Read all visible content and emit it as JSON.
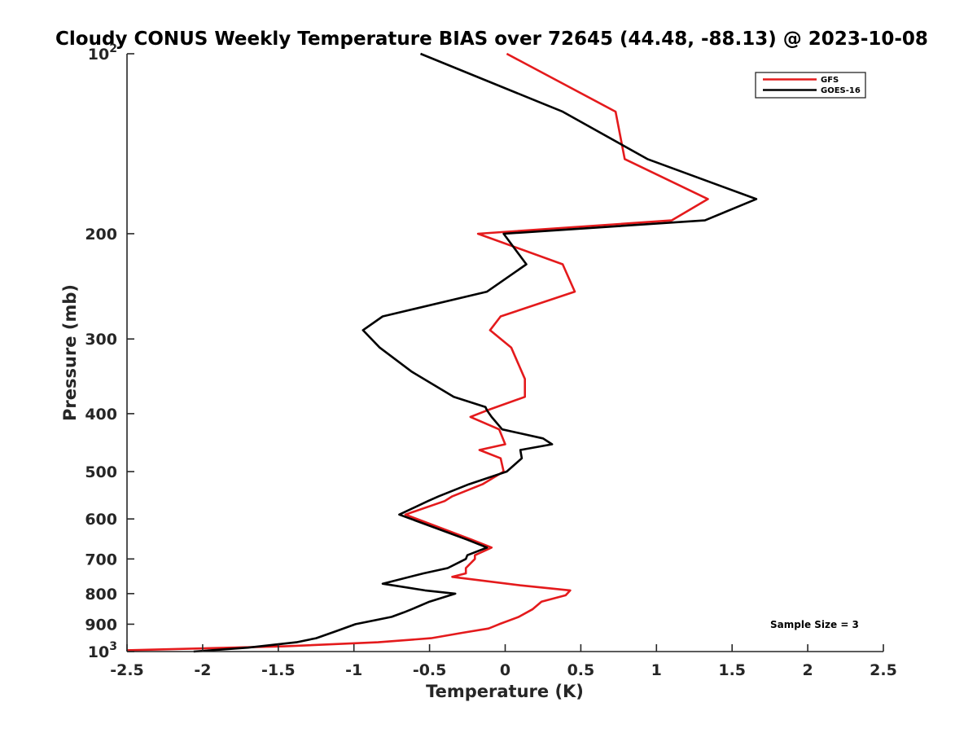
{
  "chart_data": {
    "type": "line",
    "title": "Cloudy CONUS Weekly Temperature BIAS over 72645 (44.48, -88.13) @ 2023-10-08",
    "xlabel": "Temperature (K)",
    "ylabel": "Pressure (mb)",
    "xlim": [
      -2.5,
      2.5
    ],
    "ylim": [
      100,
      1000
    ],
    "y_scale": "log",
    "y_reversed": true,
    "x_ticks": [
      -2.5,
      -2,
      -1.5,
      -1,
      -0.5,
      0,
      0.5,
      1,
      1.5,
      2,
      2.5
    ],
    "x_tick_labels": [
      "-2.5",
      "-2",
      "-1.5",
      "-1",
      "-0.5",
      "0",
      "0.5",
      "1",
      "1.5",
      "2",
      "2.5"
    ],
    "y_ticks": [
      100,
      200,
      300,
      400,
      500,
      600,
      700,
      800,
      900,
      1000
    ],
    "y_tick_labels": {
      "100": {
        "base": "10",
        "exp": "2"
      },
      "200": {
        "base": "200"
      },
      "300": {
        "base": "300"
      },
      "400": {
        "base": "400"
      },
      "500": {
        "base": "500"
      },
      "600": {
        "base": "600"
      },
      "700": {
        "base": "700"
      },
      "800": {
        "base": "800"
      },
      "900": {
        "base": "900"
      },
      "1000": {
        "base": "10",
        "exp": "3"
      }
    },
    "grid": false,
    "legend_position": "top-right",
    "annotation": "Sample Size = 3",
    "series": [
      {
        "name": "GFS",
        "color": "#e41a1c",
        "points": [
          [
            0.01,
            100
          ],
          [
            0.73,
            125
          ],
          [
            0.79,
            150
          ],
          [
            1.34,
            175
          ],
          [
            1.1,
            190
          ],
          [
            -0.18,
            200
          ],
          [
            0.38,
            225
          ],
          [
            0.46,
            250
          ],
          [
            -0.03,
            275
          ],
          [
            -0.1,
            290
          ],
          [
            0.04,
            310
          ],
          [
            0.13,
            350
          ],
          [
            0.13,
            375
          ],
          [
            -0.12,
            395
          ],
          [
            -0.23,
            405
          ],
          [
            -0.04,
            425
          ],
          [
            0.0,
            450
          ],
          [
            -0.17,
            460
          ],
          [
            -0.03,
            475
          ],
          [
            -0.01,
            500
          ],
          [
            -0.15,
            525
          ],
          [
            -0.35,
            550
          ],
          [
            -0.4,
            560
          ],
          [
            -0.66,
            590
          ],
          [
            -0.22,
            650
          ],
          [
            -0.09,
            670
          ],
          [
            -0.2,
            690
          ],
          [
            -0.2,
            700
          ],
          [
            -0.26,
            725
          ],
          [
            -0.26,
            740
          ],
          [
            -0.35,
            750
          ],
          [
            0.1,
            775
          ],
          [
            0.43,
            790
          ],
          [
            0.4,
            805
          ],
          [
            0.24,
            825
          ],
          [
            0.18,
            850
          ],
          [
            0.09,
            875
          ],
          [
            -0.04,
            900
          ],
          [
            -0.11,
            915
          ],
          [
            -0.28,
            930
          ],
          [
            -0.49,
            950
          ],
          [
            -0.84,
            965
          ],
          [
            -1.46,
            980
          ],
          [
            -2.5,
            995
          ]
        ]
      },
      {
        "name": "GOES-16",
        "color": "#000000",
        "points": [
          [
            -0.56,
            100
          ],
          [
            0.38,
            125
          ],
          [
            0.94,
            150
          ],
          [
            1.66,
            175
          ],
          [
            1.32,
            190
          ],
          [
            -0.01,
            200
          ],
          [
            0.14,
            225
          ],
          [
            -0.12,
            250
          ],
          [
            -0.81,
            275
          ],
          [
            -0.94,
            290
          ],
          [
            -0.83,
            310
          ],
          [
            -0.62,
            340
          ],
          [
            -0.34,
            375
          ],
          [
            -0.13,
            390
          ],
          [
            -0.12,
            395
          ],
          [
            -0.09,
            405
          ],
          [
            -0.02,
            425
          ],
          [
            0.25,
            440
          ],
          [
            0.31,
            450
          ],
          [
            0.1,
            460
          ],
          [
            0.11,
            475
          ],
          [
            0.01,
            500
          ],
          [
            -0.24,
            525
          ],
          [
            -0.44,
            550
          ],
          [
            -0.51,
            560
          ],
          [
            -0.7,
            590
          ],
          [
            -0.25,
            650
          ],
          [
            -0.12,
            670
          ],
          [
            -0.25,
            690
          ],
          [
            -0.26,
            700
          ],
          [
            -0.38,
            725
          ],
          [
            -0.54,
            740
          ],
          [
            -0.81,
            770
          ],
          [
            -0.53,
            790
          ],
          [
            -0.33,
            800
          ],
          [
            -0.5,
            825
          ],
          [
            -0.62,
            850
          ],
          [
            -0.67,
            860
          ],
          [
            -0.75,
            875
          ],
          [
            -0.99,
            900
          ],
          [
            -1.12,
            925
          ],
          [
            -1.25,
            950
          ],
          [
            -1.38,
            965
          ],
          [
            -1.7,
            985
          ],
          [
            -2.06,
            1000
          ]
        ]
      }
    ]
  }
}
